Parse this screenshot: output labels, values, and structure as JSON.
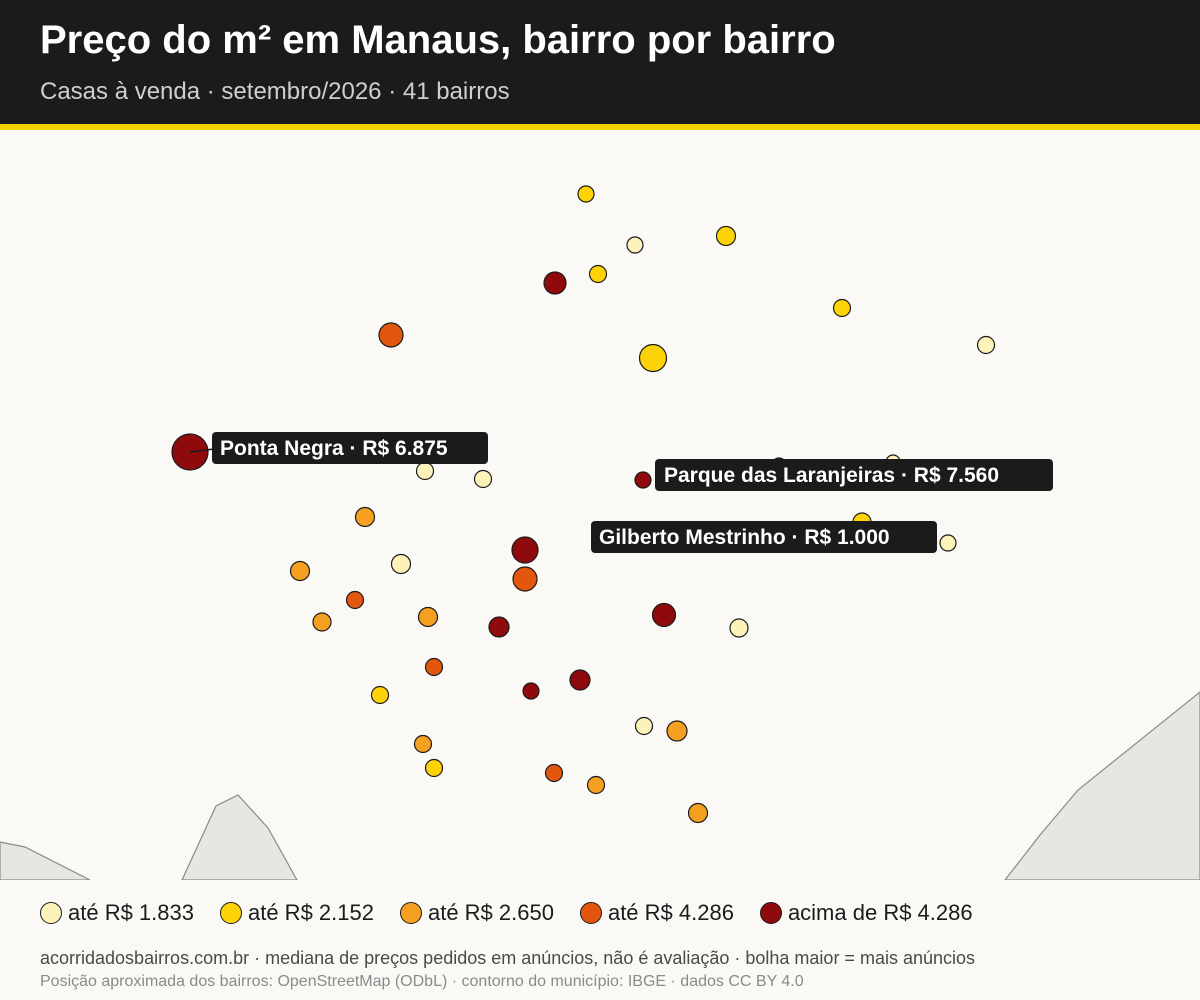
{
  "header": {
    "title": "Preço do m² em Manaus, bairro por bairro",
    "subtitle": "Casas à venda · setembro/2026 · 41 bairros"
  },
  "colors": {
    "tier1": "#fdf2b9",
    "tier2": "#fdd308",
    "tier3": "#f5a020",
    "tier4": "#e2560e",
    "tier5": "#8f0a0c",
    "header_bg": "#1b1b1b",
    "accent": "#f5d000",
    "land": "#e8e6e0"
  },
  "legend": [
    {
      "label": "até R$ 1.833",
      "tier": 1
    },
    {
      "label": "até R$ 2.152",
      "tier": 2
    },
    {
      "label": "até R$ 2.650",
      "tier": 3
    },
    {
      "label": "até R$ 4.286",
      "tier": 4
    },
    {
      "label": "acima de R$ 4.286",
      "tier": 5
    }
  ],
  "callouts": [
    {
      "label": "Ponta Negra · R$ 6.875"
    },
    {
      "label": "Parque das Laranjeiras · R$ 7.560"
    },
    {
      "label": "Gilberto Mestrinho · R$ 1.000"
    }
  ],
  "footer": {
    "line1": "acorridadosbairros.com.br · mediana de preços pedidos em anúncios, não é avaliação · bolha maior = mais anúncios",
    "line2": "Posição aproximada dos bairros: OpenStreetMap (ODbL) · contorno do município: IBGE · dados CC BY 4.0"
  }
}
